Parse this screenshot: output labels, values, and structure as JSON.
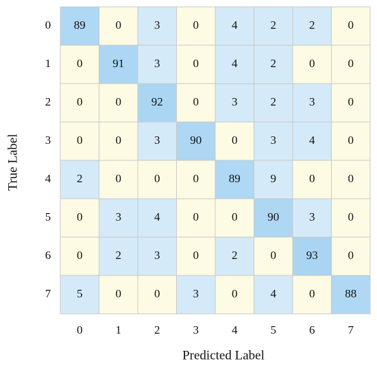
{
  "chart_data": {
    "type": "heatmap",
    "xlabel": "Predicted Label",
    "ylabel": "True Label",
    "x": [
      "0",
      "1",
      "2",
      "3",
      "4",
      "5",
      "6",
      "7"
    ],
    "y": [
      "0",
      "1",
      "2",
      "3",
      "4",
      "5",
      "6",
      "7"
    ],
    "values": [
      [
        89,
        0,
        3,
        0,
        4,
        2,
        2,
        0
      ],
      [
        0,
        91,
        3,
        0,
        4,
        2,
        0,
        0
      ],
      [
        0,
        0,
        92,
        0,
        3,
        2,
        3,
        0
      ],
      [
        0,
        0,
        3,
        90,
        0,
        3,
        4,
        0
      ],
      [
        2,
        0,
        0,
        0,
        89,
        9,
        0,
        0
      ],
      [
        0,
        3,
        4,
        0,
        0,
        90,
        3,
        0
      ],
      [
        0,
        2,
        3,
        0,
        2,
        0,
        93,
        0
      ],
      [
        5,
        0,
        0,
        3,
        0,
        4,
        0,
        88
      ]
    ],
    "colors": [
      "#fdfbe3",
      "#d5eaf8",
      "#a9d5f3"
    ]
  }
}
